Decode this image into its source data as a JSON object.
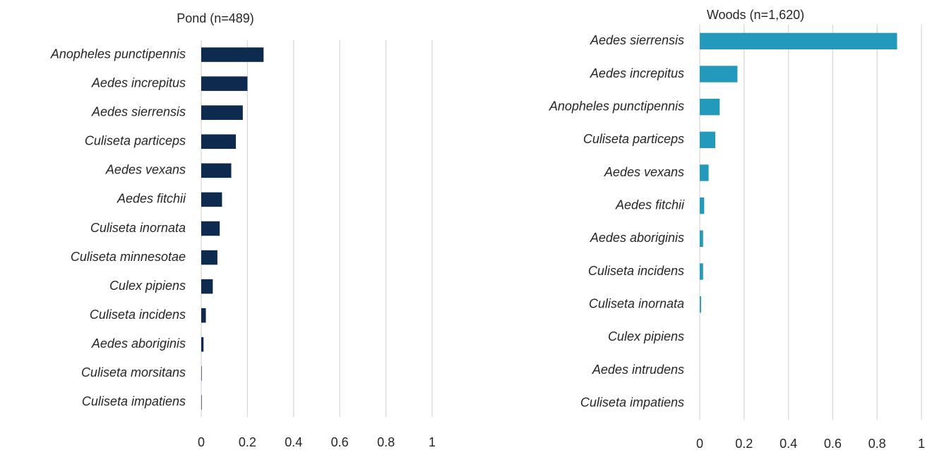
{
  "chart_data": [
    {
      "type": "bar",
      "title": "Pond (n=489)",
      "orientation": "horizontal",
      "color": "#0e2a4f",
      "grid": true,
      "categories": [
        "Anopheles punctipennis",
        "Aedes increpitus",
        "Aedes sierrensis",
        "Culiseta particeps",
        "Aedes vexans",
        "Aedes fitchii",
        "Culiseta inornata",
        "Culiseta minnesotae",
        "Culex pipiens",
        "Culiseta incidens",
        "Aedes aboriginis",
        "Culiseta morsitans",
        "Culiseta impatiens"
      ],
      "values": [
        0.27,
        0.2,
        0.18,
        0.15,
        0.13,
        0.09,
        0.08,
        0.07,
        0.05,
        0.02,
        0.01,
        0.002,
        0.002
      ],
      "xlim": [
        0,
        1
      ],
      "xticks": [
        0,
        0.2,
        0.4,
        0.6,
        0.8,
        1
      ]
    },
    {
      "type": "bar",
      "title": "Woods (n=1,620)",
      "orientation": "horizontal",
      "color": "#2399bb",
      "grid": true,
      "categories": [
        "Aedes sierrensis",
        "Aedes increpitus",
        "Anopheles punctipennis",
        "Culiseta particeps",
        "Aedes vexans",
        "Aedes fitchii",
        "Aedes aboriginis",
        "Culiseta incidens",
        "Culiseta inornata",
        "Culex pipiens",
        "Aedes intrudens",
        "Culiseta impatiens"
      ],
      "values": [
        0.89,
        0.17,
        0.09,
        0.07,
        0.04,
        0.02,
        0.015,
        0.015,
        0.006,
        0,
        0,
        0
      ],
      "xlim": [
        0,
        1
      ],
      "xticks": [
        0,
        0.2,
        0.4,
        0.6,
        0.8,
        1
      ]
    }
  ]
}
